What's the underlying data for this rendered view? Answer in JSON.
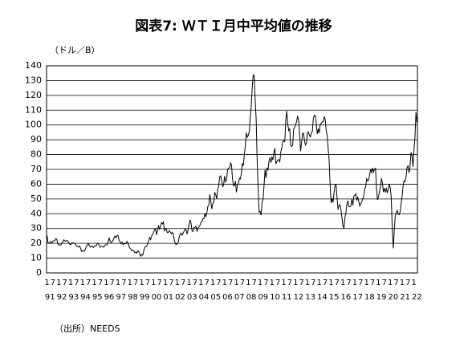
{
  "chart_data": {
    "type": "line",
    "title": "図表7: ＷＴＩ月中平均値の推移",
    "y_unit_label": "（ドル／B）",
    "source": "（出所）NEEDS",
    "color": "#000000",
    "grid": true,
    "ylim": [
      0,
      140
    ],
    "yticks": [
      0,
      10,
      20,
      30,
      40,
      50,
      60,
      70,
      80,
      90,
      100,
      110,
      120,
      130,
      140
    ],
    "year_labels": [
      "91",
      "92",
      "93",
      "94",
      "95",
      "96",
      "97",
      "98",
      "99",
      "00",
      "01",
      "02",
      "03",
      "04",
      "05",
      "06",
      "07",
      "08",
      "09",
      "10",
      "11",
      "12",
      "13",
      "14",
      "15",
      "16",
      "17",
      "18",
      "19",
      "20",
      "21",
      "22"
    ],
    "categories": [
      "1",
      null,
      null,
      null,
      null,
      null,
      "7",
      null,
      null,
      null,
      null,
      null,
      "1",
      null,
      null,
      null,
      null,
      null,
      "7",
      null,
      null,
      null,
      null,
      null,
      "1",
      null,
      null,
      null,
      null,
      null,
      "7",
      null,
      null,
      null,
      null,
      null,
      "1",
      null,
      null,
      null,
      null,
      null,
      "7",
      null,
      null,
      null,
      null,
      null,
      "1",
      null,
      null,
      null,
      null,
      null,
      "7",
      null,
      null,
      null,
      null,
      null,
      "1",
      null,
      null,
      null,
      null,
      null,
      "7",
      null,
      null,
      null,
      null,
      null,
      "1",
      null,
      null,
      null,
      null,
      null,
      "7",
      null,
      null,
      null,
      null,
      null,
      "1",
      null,
      null,
      null,
      null,
      null,
      "7",
      null,
      null,
      null,
      null,
      null,
      "1",
      null,
      null,
      null,
      null,
      null,
      "7",
      null,
      null,
      null,
      null,
      null,
      "1",
      null,
      null,
      null,
      null,
      null,
      "7",
      null,
      null,
      null,
      null,
      null,
      "1",
      null,
      null,
      null,
      null,
      null,
      "7",
      null,
      null,
      null,
      null,
      null,
      "1",
      null,
      null,
      null,
      null,
      null,
      "7",
      null,
      null,
      null,
      null,
      null,
      "1",
      null,
      null,
      null,
      null,
      null,
      "7",
      null,
      null,
      null,
      null,
      null,
      "1",
      null,
      null,
      null,
      null,
      null,
      "7",
      null,
      null,
      null,
      null,
      null,
      "1",
      null,
      null,
      null,
      null,
      null,
      "7",
      null,
      null,
      null,
      null,
      null,
      "1",
      null,
      null,
      null,
      null,
      null,
      "7",
      null,
      null,
      null,
      null,
      null,
      "1",
      null,
      null,
      null,
      null,
      null,
      "7",
      null,
      null,
      null,
      null,
      null,
      "1",
      null,
      null,
      null,
      null,
      null,
      "7",
      null,
      null,
      null,
      null,
      null,
      "1",
      null,
      null,
      null,
      null,
      null,
      "7",
      null,
      null,
      null,
      null,
      null,
      "1",
      null,
      null,
      null,
      null,
      null,
      "7",
      null,
      null,
      null,
      null,
      null,
      "1",
      null,
      null,
      null,
      null,
      null,
      "7",
      null,
      null,
      null,
      null,
      null,
      "1",
      null,
      null,
      null,
      null,
      null,
      "7",
      null,
      null,
      null,
      null,
      null,
      "1",
      null,
      null,
      null,
      null,
      null,
      "7",
      null,
      null,
      null,
      null,
      null,
      "1",
      null,
      null,
      null,
      null,
      null,
      "7",
      null,
      null,
      null,
      null,
      null,
      "1",
      null,
      null,
      null,
      null,
      null,
      "7",
      null,
      null,
      null,
      null,
      null,
      "1",
      null,
      null,
      null,
      null,
      null,
      "7",
      null,
      null,
      null,
      null,
      null,
      "1",
      null,
      null,
      null,
      null,
      null,
      "7",
      null,
      null,
      null,
      null,
      null,
      "1",
      null,
      null,
      null,
      null,
      null,
      "7",
      null,
      null,
      null,
      null,
      null,
      "1",
      null,
      null,
      null,
      null,
      null,
      "7",
      null,
      null,
      null,
      null,
      null,
      "1",
      null,
      null,
      null,
      null,
      null,
      "7",
      null,
      null,
      null,
      null,
      null,
      "1",
      null,
      null,
      null,
      null,
      null,
      "7",
      null,
      null,
      null,
      null,
      null,
      "1",
      null,
      null,
      null
    ],
    "values": [
      25.2,
      20.4,
      19.9,
      20.8,
      21.2,
      20.2,
      21.4,
      21.7,
      21.9,
      23.2,
      22.5,
      19.5,
      18.8,
      19.0,
      18.9,
      20.2,
      20.9,
      22.4,
      21.8,
      21.4,
      21.9,
      21.7,
      20.3,
      19.4,
      19.1,
      20.1,
      20.3,
      20.3,
      19.9,
      19.1,
      17.9,
      18.0,
      17.5,
      18.2,
      16.7,
      14.5,
      15.0,
      14.8,
      14.7,
      16.4,
      17.9,
      19.1,
      19.7,
      18.4,
      17.5,
      17.7,
      18.1,
      17.2,
      18.0,
      18.6,
      18.5,
      19.9,
      19.7,
      18.4,
      17.3,
      17.9,
      18.1,
      17.4,
      18.0,
      19.0,
      18.9,
      19.1,
      21.4,
      23.6,
      21.2,
      20.5,
      21.3,
      22.0,
      24.0,
      24.9,
      23.7,
      25.4,
      25.2,
      22.2,
      21.0,
      19.7,
      20.8,
      19.2,
      19.6,
      19.9,
      19.8,
      21.3,
      20.2,
      18.3,
      16.7,
      16.1,
      15.0,
      15.4,
      14.9,
      13.7,
      14.1,
      13.4,
      15.0,
      14.4,
      12.9,
      11.3,
      12.5,
      12.0,
      14.7,
      17.3,
      17.8,
      17.9,
      20.1,
      21.3,
      23.9,
      22.6,
      25.0,
      26.1,
      27.2,
      29.4,
      29.9,
      25.7,
      28.8,
      31.8,
      29.7,
      31.3,
      33.9,
      33.1,
      34.4,
      28.5,
      29.6,
      29.6,
      27.2,
      27.4,
      28.6,
      27.6,
      26.4,
      27.4,
      26.2,
      22.2,
      19.6,
      19.3,
      19.7,
      20.7,
      24.4,
      26.3,
      27.0,
      25.5,
      26.9,
      28.4,
      29.7,
      28.9,
      26.3,
      29.4,
      32.9,
      35.9,
      33.6,
      28.3,
      28.1,
      30.7,
      30.8,
      31.6,
      28.3,
      30.3,
      31.1,
      32.1,
      34.3,
      34.7,
      36.7,
      36.7,
      40.3,
      38.0,
      40.7,
      44.9,
      46.0,
      53.1,
      48.5,
      43.3,
      46.8,
      48.0,
      54.3,
      53.0,
      50.0,
      56.5,
      58.7,
      65.0,
      65.6,
      62.4,
      58.3,
      59.4,
      65.5,
      61.6,
      62.9,
      69.7,
      70.9,
      71.0,
      74.4,
      73.1,
      63.8,
      58.9,
      59.1,
      62.0,
      54.5,
      59.3,
      60.4,
      64.0,
      63.5,
      67.5,
      74.1,
      72.4,
      79.9,
      85.8,
      94.8,
      91.7,
      93.0,
      95.4,
      105.5,
      112.6,
      125.4,
      133.9,
      133.4,
      116.7,
      104.1,
      76.6,
      57.3,
      41.1,
      41.7,
      39.1,
      47.9,
      49.7,
      59.0,
      69.6,
      64.2,
      71.1,
      69.4,
      75.7,
      78.0,
      74.5,
      78.3,
      76.4,
      81.2,
      84.3,
      73.7,
      75.3,
      76.3,
      76.6,
      75.2,
      81.9,
      84.3,
      89.2,
      89.2,
      88.6,
      102.9,
      109.5,
      100.9,
      96.3,
      97.3,
      86.3,
      85.5,
      86.3,
      97.2,
      98.6,
      100.3,
      102.2,
      106.2,
      103.3,
      94.7,
      82.3,
      87.9,
      94.1,
      94.5,
      89.5,
      86.5,
      87.9,
      94.8,
      95.3,
      92.9,
      92.0,
      94.5,
      95.8,
      104.6,
      106.6,
      106.3,
      100.5,
      93.9,
      97.6,
      94.6,
      100.8,
      100.8,
      102.1,
      102.2,
      105.8,
      103.6,
      96.5,
      93.2,
      84.4,
      75.8,
      59.3,
      47.2,
      50.6,
      47.8,
      54.5,
      59.3,
      59.8,
      50.9,
      42.9,
      45.5,
      46.2,
      42.7,
      37.3,
      31.7,
      30.3,
      37.5,
      40.8,
      46.7,
      48.8,
      44.7,
      44.7,
      45.2,
      49.8,
      45.7,
      52.0,
      52.5,
      53.5,
      49.3,
      51.1,
      48.5,
      45.2,
      46.6,
      48.0,
      49.8,
      51.6,
      56.6,
      57.9,
      63.7,
      62.2,
      62.7,
      66.3,
      70.0,
      67.9,
      71.0,
      68.1,
      70.2,
      70.8,
      57.0,
      49.5,
      51.4,
      55.0,
      58.2,
      63.9,
      60.8,
      54.7,
      57.4,
      54.8,
      57.0,
      54.0,
      57.0,
      59.9,
      57.5,
      50.5,
      29.2,
      16.6,
      28.6,
      38.3,
      40.7,
      42.3,
      39.6,
      39.4,
      41.4,
      47.0,
      52.0,
      59.1,
      62.3,
      61.7,
      65.2,
      71.4,
      72.4,
      67.7,
      71.6,
      81.5,
      79.2,
      71.7,
      83.2,
      91.6,
      108.5,
      101.6
    ]
  }
}
